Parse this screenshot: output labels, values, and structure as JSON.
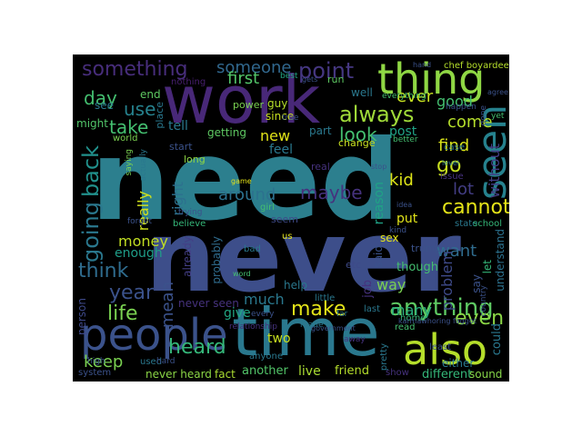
{
  "words": [
    {
      "text": "need",
      "color": "#2c7f8e"
    },
    {
      "text": "never",
      "color": "#3d4e8a"
    },
    {
      "text": "work",
      "color": "#482878"
    },
    {
      "text": "time",
      "color": "#2a788e"
    },
    {
      "text": "people",
      "color": "#3b528b"
    },
    {
      "text": "thing",
      "color": "#8fd744"
    },
    {
      "text": "seen",
      "color": "#26828e"
    },
    {
      "text": "also",
      "color": "#b5de2b"
    },
    {
      "text": "something",
      "color": "#472d7b"
    },
    {
      "text": "someone",
      "color": "#31688e"
    },
    {
      "text": "point",
      "color": "#453781"
    },
    {
      "text": "always",
      "color": "#a0da39"
    },
    {
      "text": "going",
      "color": "#2a788e"
    },
    {
      "text": "back",
      "color": "#21918c"
    },
    {
      "text": "anything",
      "color": "#5ec962"
    },
    {
      "text": "think",
      "color": "#2f6c8e"
    },
    {
      "text": "year",
      "color": "#3b528b"
    },
    {
      "text": "life",
      "color": "#7ad151"
    },
    {
      "text": "heard",
      "color": "#35b779"
    },
    {
      "text": "keep",
      "color": "#7ad151"
    },
    {
      "text": "make",
      "color": "#e4e419"
    },
    {
      "text": "first",
      "color": "#52c569"
    },
    {
      "text": "look",
      "color": "#44bf70"
    },
    {
      "text": "take",
      "color": "#44bf70"
    },
    {
      "text": "day",
      "color": "#44bf70"
    },
    {
      "text": "use",
      "color": "#26828e"
    },
    {
      "text": "around",
      "color": "#2c718e"
    },
    {
      "text": "maybe",
      "color": "#46327e"
    },
    {
      "text": "really",
      "color": "#d2e21b"
    },
    {
      "text": "money",
      "color": "#c2df23"
    },
    {
      "text": "mean",
      "color": "#3b528b"
    },
    {
      "text": "right",
      "color": "#2d708e"
    },
    {
      "text": "much",
      "color": "#2a788e"
    },
    {
      "text": "cannot",
      "color": "#e5e419"
    },
    {
      "text": "lot",
      "color": "#433e85"
    },
    {
      "text": "want",
      "color": "#2f6c8e"
    },
    {
      "text": "even",
      "color": "#8bd646"
    },
    {
      "text": "way",
      "color": "#7ad151"
    },
    {
      "text": "kid",
      "color": "#dde318"
    },
    {
      "text": "find",
      "color": "#d8e219"
    },
    {
      "text": "go",
      "color": "#c8e020"
    },
    {
      "text": "come",
      "color": "#b5de2b"
    },
    {
      "text": "good",
      "color": "#44bf70"
    },
    {
      "text": "ever",
      "color": "#c5e021"
    },
    {
      "text": "new",
      "color": "#e2e418"
    },
    {
      "text": "tell",
      "color": "#2a788e"
    },
    {
      "text": "getting",
      "color": "#5ec962"
    },
    {
      "text": "post",
      "color": "#20a386"
    },
    {
      "text": "problem",
      "color": "#3e4a89"
    },
    {
      "text": "without",
      "color": "#433e85"
    },
    {
      "text": "enough",
      "color": "#1f9e89"
    },
    {
      "text": "many",
      "color": "#29af7f"
    },
    {
      "text": "give",
      "color": "#22a884"
    },
    {
      "text": "two",
      "color": "#c8e020"
    },
    {
      "text": "live",
      "color": "#aadc32"
    },
    {
      "text": "friend",
      "color": "#b5de2b"
    },
    {
      "text": "another",
      "color": "#52c569"
    },
    {
      "text": "put",
      "color": "#e1e418"
    },
    {
      "text": "feel",
      "color": "#2a788e"
    },
    {
      "text": "job",
      "color": "#46327e"
    },
    {
      "text": "though",
      "color": "#44bf70"
    },
    {
      "text": "said",
      "color": "#3b528b"
    },
    {
      "text": "reason",
      "color": "#20a386"
    },
    {
      "text": "could",
      "color": "#2a788e"
    },
    {
      "text": "different",
      "color": "#35b779"
    },
    {
      "text": "understand",
      "color": "#2c718e"
    },
    {
      "text": "sex",
      "color": "#e5e419"
    },
    {
      "text": "person",
      "color": "#3e4989"
    },
    {
      "text": "see",
      "color": "#2a788e"
    },
    {
      "text": "might",
      "color": "#52c569"
    },
    {
      "text": "probably",
      "color": "#2f6c8e"
    },
    {
      "text": "already",
      "color": "#433e85"
    },
    {
      "text": "never heard",
      "color": "#8bd646"
    },
    {
      "text": "never seen",
      "color": "#46327e"
    },
    {
      "text": "fact",
      "color": "#aadc32"
    },
    {
      "text": "sound",
      "color": "#86d549"
    },
    {
      "text": "either",
      "color": "#2a788e"
    },
    {
      "text": "say",
      "color": "#3b528b"
    },
    {
      "text": "let",
      "color": "#35b779"
    },
    {
      "text": "help",
      "color": "#2a788e"
    },
    {
      "text": "well",
      "color": "#2a788e"
    },
    {
      "text": "end",
      "color": "#5ec962"
    },
    {
      "text": "part",
      "color": "#2a788e"
    },
    {
      "text": "since",
      "color": "#c8e020"
    },
    {
      "text": "guy",
      "color": "#b5de2b"
    },
    {
      "text": "power",
      "color": "#7ad151"
    },
    {
      "text": "long",
      "color": "#8fd744"
    },
    {
      "text": "start",
      "color": "#3b528b"
    },
    {
      "text": "change",
      "color": "#c8e020"
    },
    {
      "text": "nothing",
      "color": "#481f70"
    },
    {
      "text": "chef boyardee",
      "color": "#b5de2b"
    },
    {
      "text": "run",
      "color": "#5ec962"
    },
    {
      "text": "best",
      "color": "#22a884"
    },
    {
      "text": "world",
      "color": "#7ad151"
    },
    {
      "text": "place",
      "color": "#2a788e"
    },
    {
      "text": "used",
      "color": "#2a788e"
    },
    {
      "text": "system",
      "color": "#3b528b"
    },
    {
      "text": "high",
      "color": "#3b528b"
    },
    {
      "text": "little",
      "color": "#2a788e"
    },
    {
      "text": "seem",
      "color": "#3e4a89"
    },
    {
      "text": "bad",
      "color": "#2a788e"
    },
    {
      "text": "us",
      "color": "#e5e419"
    },
    {
      "text": "etc",
      "color": "#3e4a89"
    },
    {
      "text": "real",
      "color": "#46327e"
    },
    {
      "text": "trump",
      "color": "#3b528b"
    },
    {
      "text": "state",
      "color": "#2a788e"
    },
    {
      "text": "school",
      "color": "#35b779"
    },
    {
      "text": "home",
      "color": "#35b779"
    },
    {
      "text": "read",
      "color": "#44bf70"
    },
    {
      "text": "last",
      "color": "#2a788e"
    },
    {
      "text": "least",
      "color": "#3b528b"
    },
    {
      "text": "show",
      "color": "#46327e"
    },
    {
      "text": "issue",
      "color": "#46327e"
    },
    {
      "text": "case",
      "color": "#2a788e"
    },
    {
      "text": "done",
      "color": "#3b528b"
    },
    {
      "text": "yet",
      "color": "#44bf70"
    },
    {
      "text": "happen",
      "color": "#3b528b"
    },
    {
      "text": "everything",
      "color": "#44bf70"
    },
    {
      "text": "better",
      "color": "#44bf70"
    },
    {
      "text": "true",
      "color": "#3b528b"
    },
    {
      "text": "actually",
      "color": "#2a788e"
    },
    {
      "text": "saying",
      "color": "#7ad151"
    },
    {
      "text": "forget",
      "color": "#3b528b"
    },
    {
      "text": "believe",
      "color": "#35b779"
    },
    {
      "text": "girl",
      "color": "#44bf70"
    },
    {
      "text": "made",
      "color": "#2a788e"
    },
    {
      "text": "kind",
      "color": "#3b528b"
    },
    {
      "text": "far",
      "color": "#2a788e"
    },
    {
      "text": "away",
      "color": "#46327e"
    },
    {
      "text": "pretty",
      "color": "#2a788e"
    },
    {
      "text": "anyone",
      "color": "#2a788e"
    },
    {
      "text": "every",
      "color": "#3b528b"
    },
    {
      "text": "relationship",
      "color": "#46327e"
    },
    {
      "text": "government",
      "color": "#3b528b"
    },
    {
      "text": "country",
      "color": "#3b528b"
    },
    {
      "text": "game",
      "color": "#e5e419"
    },
    {
      "text": "level",
      "color": "#2a788e"
    },
    {
      "text": "trying",
      "color": "#3b528b"
    },
    {
      "text": "idea",
      "color": "#3b528b"
    },
    {
      "text": "karmawhoring faggot",
      "color": "#3b528b"
    },
    {
      "text": "hard",
      "color": "#3b528b"
    },
    {
      "text": "word",
      "color": "#44bf70"
    },
    {
      "text": "stop",
      "color": "#3b528b"
    },
    {
      "text": "hand",
      "color": "#3b528b"
    },
    {
      "text": "agree",
      "color": "#3b528b"
    },
    {
      "text": "gets",
      "color": "#3b528b"
    }
  ]
}
